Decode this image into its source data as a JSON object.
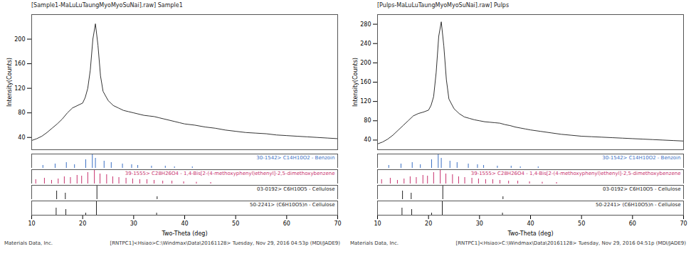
{
  "chart_data": [
    {
      "type": "line",
      "title": "[Sample1-MaLuLuTaungMyoMyoSuNai].raw] Sample1",
      "xlabel": "Two-Theta (deg)",
      "ylabel": "Intensity(Counts)",
      "xlim": [
        10,
        70
      ],
      "xticks": [
        10,
        20,
        30,
        40,
        50,
        60,
        70
      ],
      "ylim": [
        20,
        240
      ],
      "yticks": [
        40,
        80,
        120,
        160,
        200
      ],
      "color": "#333333",
      "x": [
        10,
        11,
        12,
        13,
        14,
        15,
        16,
        17,
        18,
        19,
        20,
        20.5,
        21,
        21.5,
        22,
        22.5,
        23,
        23.5,
        24,
        25,
        26,
        27,
        28,
        29,
        30,
        31,
        32,
        33,
        34,
        35,
        36,
        37,
        38,
        39,
        40,
        42,
        44,
        46,
        48,
        50,
        52,
        54,
        56,
        58,
        60,
        62,
        64,
        66,
        68,
        70
      ],
      "values": [
        35,
        38,
        42,
        48,
        55,
        62,
        70,
        80,
        88,
        92,
        96,
        105,
        120,
        150,
        200,
        225,
        190,
        140,
        115,
        100,
        92,
        88,
        84,
        82,
        80,
        78,
        76,
        75,
        74,
        72,
        70,
        68,
        66,
        64,
        62,
        60,
        57,
        55,
        52,
        50,
        48,
        47,
        46,
        44,
        43,
        42,
        41,
        40,
        39,
        38
      ],
      "phases": [
        {
          "name": "30-1542> C14H10O2 - Benzoin",
          "color": "#3a6fc4",
          "peaks": [
            12.2,
            14.6,
            16.8,
            18.4,
            20.6,
            21.9,
            22.5,
            24.2,
            25.6,
            27.8,
            29.6,
            30.8,
            33.5,
            36.2,
            38.0,
            41.5
          ],
          "intensities": [
            20,
            30,
            40,
            25,
            60,
            100,
            70,
            50,
            40,
            30,
            25,
            20,
            15,
            15,
            10,
            10
          ]
        },
        {
          "name": "39-1555> C28H26O4 - 1,4-Bis[2-(4-methoxyphenyl)ethenyl]-2,5-dimethoxybenzene",
          "color": "#c8326e",
          "peaks": [
            10.8,
            12.5,
            13.9,
            15.2,
            16.4,
            17.6,
            18.9,
            19.8,
            21.0,
            22.3,
            23.4,
            24.7,
            25.9,
            27.1,
            28.5,
            29.8,
            31.2,
            32.6,
            34.0,
            35.7,
            37.5,
            39.8,
            42.3,
            45.1
          ],
          "intensities": [
            30,
            40,
            25,
            35,
            50,
            45,
            60,
            55,
            80,
            100,
            70,
            65,
            50,
            45,
            40,
            35,
            30,
            30,
            25,
            20,
            20,
            15,
            12,
            10
          ]
        },
        {
          "name": "03-0192> C6H10O5 - Cellulose",
          "color": "#222222",
          "peaks": [
            14.9,
            16.6,
            22.8,
            34.6
          ],
          "intensities": [
            60,
            45,
            100,
            20
          ]
        },
        {
          "name": "50-2241> (C6H10O5)n - Cellulose",
          "color": "#222222",
          "peaks": [
            14.8,
            16.7,
            20.6,
            22.7,
            34.5
          ],
          "intensities": [
            50,
            40,
            15,
            100,
            15
          ]
        }
      ],
      "caption_left": "Materials Data, Inc.",
      "caption_right": "[RNTPC1]<Hsiao>C:\\Windmax\\Data\\20161128> Tuesday, Nov 29, 2016 04:53p (MDI/JADE9)"
    },
    {
      "type": "line",
      "title": "[Pulps-MaLuLuTaungMyoMyoSuNai].raw] Pulps",
      "xlabel": "Two-Theta (deg)",
      "ylabel": "Intensity(Counts)",
      "xlim": [
        10,
        70
      ],
      "xticks": [
        10,
        20,
        30,
        40,
        50,
        60,
        70
      ],
      "ylim": [
        20,
        300
      ],
      "yticks": [
        40,
        80,
        120,
        160,
        200,
        240,
        280
      ],
      "color": "#333333",
      "x": [
        10,
        11,
        12,
        13,
        14,
        15,
        16,
        17,
        18,
        19,
        20,
        20.5,
        21,
        21.5,
        22,
        22.5,
        23,
        23.5,
        24,
        25,
        26,
        27,
        28,
        29,
        30,
        31,
        32,
        33,
        34,
        35,
        36,
        37,
        38,
        39,
        40,
        42,
        44,
        46,
        48,
        50,
        52,
        54,
        56,
        58,
        60,
        62,
        64,
        66,
        68,
        70
      ],
      "values": [
        32,
        36,
        42,
        50,
        60,
        70,
        80,
        90,
        95,
        98,
        102,
        112,
        130,
        180,
        255,
        285,
        235,
        165,
        125,
        105,
        95,
        88,
        85,
        82,
        80,
        78,
        77,
        76,
        75,
        72,
        70,
        67,
        65,
        63,
        61,
        58,
        55,
        52,
        50,
        48,
        47,
        46,
        45,
        44,
        43,
        42,
        41,
        40,
        39,
        38
      ],
      "phases": [
        {
          "name": "30-1542> C14H10O2 - Benzoin",
          "color": "#3a6fc4",
          "peaks": [
            12.2,
            14.6,
            16.8,
            18.4,
            20.6,
            21.9,
            22.5,
            24.2,
            25.6,
            27.8,
            29.6,
            30.8,
            33.5,
            36.2,
            38.0,
            41.5
          ],
          "intensities": [
            20,
            30,
            40,
            25,
            60,
            100,
            70,
            50,
            40,
            30,
            25,
            20,
            15,
            15,
            10,
            10
          ]
        },
        {
          "name": "39-1555> C28H26O4 - 1,4-Bis[2-(4-methoxyphenyl)ethenyl]-2,5-dimethoxybenzene",
          "color": "#c8326e",
          "peaks": [
            10.8,
            12.5,
            13.9,
            15.2,
            16.4,
            17.6,
            18.9,
            19.8,
            21.0,
            22.3,
            23.4,
            24.7,
            25.9,
            27.1,
            28.5,
            29.8,
            31.2,
            32.6,
            34.0,
            35.7,
            37.5,
            39.8,
            42.3,
            45.1
          ],
          "intensities": [
            30,
            40,
            25,
            35,
            50,
            45,
            60,
            55,
            80,
            100,
            70,
            65,
            50,
            45,
            40,
            35,
            30,
            30,
            25,
            20,
            20,
            15,
            12,
            10
          ]
        },
        {
          "name": "03-0192> C6H10O5 - Cellulose",
          "color": "#222222",
          "peaks": [
            14.9,
            16.6,
            22.8,
            34.6
          ],
          "intensities": [
            60,
            45,
            100,
            20
          ]
        },
        {
          "name": "50-2241> (C6H10O5)n - Cellulose",
          "color": "#222222",
          "peaks": [
            14.8,
            16.7,
            20.6,
            22.7,
            34.5
          ],
          "intensities": [
            50,
            40,
            15,
            100,
            15
          ]
        }
      ],
      "caption_left": "Materials Data, Inc.",
      "caption_right": "[RNTPC1]<Hsiao>C:\\Windmax\\Data\\20161128> Tuesday, Nov 29, 2016 04:51p (MDI/JADE9)"
    }
  ]
}
